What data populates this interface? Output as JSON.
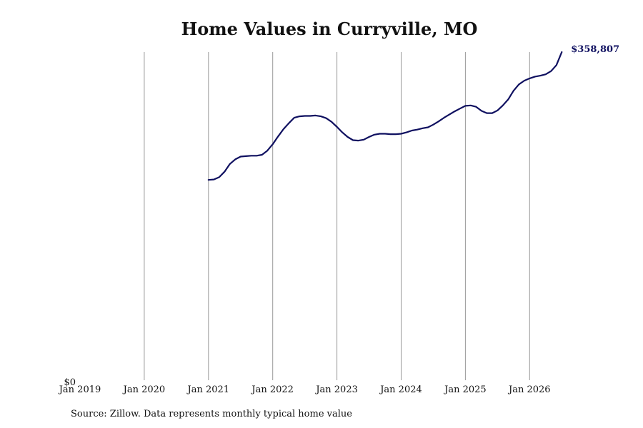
{
  "title": "Home Values in Curryville, MO",
  "source": "Source: Zillow. Data represents monthly typical home value",
  "colors": {
    "line": "#0f1060",
    "grid": "#999999",
    "text": "#111111"
  },
  "chart_data": {
    "type": "line",
    "title": "Home Values in Curryville, MO",
    "xlabel": "",
    "ylabel": "",
    "x_ticks": [
      "Jan 2019",
      "Jan 2020",
      "Jan 2021",
      "Jan 2022",
      "Jan 2023",
      "Jan 2024",
      "Jan 2025",
      "Jan 2026"
    ],
    "y_ticks": [
      "$0"
    ],
    "xlim": [
      "2019-01",
      "2026-07"
    ],
    "ylim": [
      0,
      358807
    ],
    "grid": "vertical",
    "end_label": "$358,807",
    "series": [
      {
        "values": [
          {
            "x": "2021-01",
            "y": 219000
          },
          {
            "x": "2021-02",
            "y": 219500
          },
          {
            "x": "2021-03",
            "y": 222000
          },
          {
            "x": "2021-04",
            "y": 228000
          },
          {
            "x": "2021-05",
            "y": 236500
          },
          {
            "x": "2021-06",
            "y": 241500
          },
          {
            "x": "2021-07",
            "y": 244500
          },
          {
            "x": "2021-08",
            "y": 245000
          },
          {
            "x": "2021-09",
            "y": 245500
          },
          {
            "x": "2021-10",
            "y": 245500
          },
          {
            "x": "2021-11",
            "y": 246500
          },
          {
            "x": "2021-12",
            "y": 251000
          },
          {
            "x": "2022-01",
            "y": 258000
          },
          {
            "x": "2022-02",
            "y": 266500
          },
          {
            "x": "2022-03",
            "y": 274500
          },
          {
            "x": "2022-04",
            "y": 281000
          },
          {
            "x": "2022-05",
            "y": 287000
          },
          {
            "x": "2022-06",
            "y": 288500
          },
          {
            "x": "2022-07",
            "y": 289000
          },
          {
            "x": "2022-08",
            "y": 289000
          },
          {
            "x": "2022-09",
            "y": 289500
          },
          {
            "x": "2022-10",
            "y": 288500
          },
          {
            "x": "2022-11",
            "y": 286500
          },
          {
            "x": "2022-12",
            "y": 282500
          },
          {
            "x": "2023-01",
            "y": 277000
          },
          {
            "x": "2023-02",
            "y": 271000
          },
          {
            "x": "2023-03",
            "y": 266000
          },
          {
            "x": "2023-04",
            "y": 262500
          },
          {
            "x": "2023-05",
            "y": 262000
          },
          {
            "x": "2023-06",
            "y": 263000
          },
          {
            "x": "2023-07",
            "y": 266000
          },
          {
            "x": "2023-08",
            "y": 268500
          },
          {
            "x": "2023-09",
            "y": 269500
          },
          {
            "x": "2023-10",
            "y": 269500
          },
          {
            "x": "2023-11",
            "y": 269000
          },
          {
            "x": "2023-12",
            "y": 269000
          },
          {
            "x": "2024-01",
            "y": 269500
          },
          {
            "x": "2024-02",
            "y": 271000
          },
          {
            "x": "2024-03",
            "y": 273000
          },
          {
            "x": "2024-04",
            "y": 274000
          },
          {
            "x": "2024-05",
            "y": 275500
          },
          {
            "x": "2024-06",
            "y": 276500
          },
          {
            "x": "2024-07",
            "y": 279500
          },
          {
            "x": "2024-08",
            "y": 283000
          },
          {
            "x": "2024-09",
            "y": 287000
          },
          {
            "x": "2024-10",
            "y": 290500
          },
          {
            "x": "2024-11",
            "y": 294000
          },
          {
            "x": "2024-12",
            "y": 297000
          },
          {
            "x": "2025-01",
            "y": 300000
          },
          {
            "x": "2025-02",
            "y": 300500
          },
          {
            "x": "2025-03",
            "y": 299000
          },
          {
            "x": "2025-04",
            "y": 294500
          },
          {
            "x": "2025-05",
            "y": 292000
          },
          {
            "x": "2025-06",
            "y": 292000
          },
          {
            "x": "2025-07",
            "y": 295000
          },
          {
            "x": "2025-08",
            "y": 300500
          },
          {
            "x": "2025-09",
            "y": 307000
          },
          {
            "x": "2025-10",
            "y": 316500
          },
          {
            "x": "2025-11",
            "y": 323500
          },
          {
            "x": "2025-12",
            "y": 327500
          },
          {
            "x": "2026-01",
            "y": 330000
          },
          {
            "x": "2026-02",
            "y": 332000
          },
          {
            "x": "2026-03",
            "y": 333000
          },
          {
            "x": "2026-04",
            "y": 334500
          },
          {
            "x": "2026-05",
            "y": 338000
          },
          {
            "x": "2026-06",
            "y": 344500
          },
          {
            "x": "2026-07",
            "y": 358807
          }
        ]
      }
    ]
  }
}
